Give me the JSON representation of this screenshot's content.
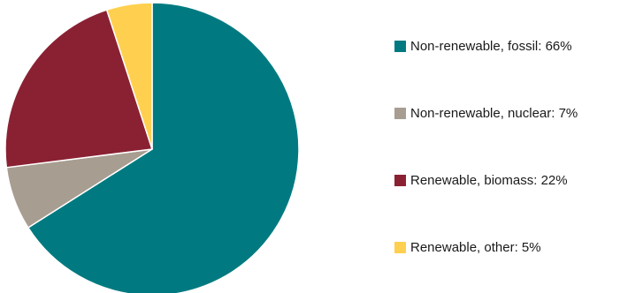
{
  "chart_data": {
    "type": "pie",
    "title": "",
    "start_angle_deg": 0,
    "direction": "clockwise",
    "slices": [
      {
        "name": "Non-renewable, fossil",
        "value": 66,
        "color": "#007A80",
        "legend_label": "Non-renewable, fossil: 66%"
      },
      {
        "name": "Non-renewable, nuclear",
        "value": 7,
        "color": "#A89D91",
        "legend_label": "Non-renewable, nuclear: 7%"
      },
      {
        "name": "Renewable, biomass",
        "value": 22,
        "color": "#8A2133",
        "legend_label": "Renewable, biomass: 22%"
      },
      {
        "name": "Renewable, other",
        "value": 5,
        "color": "#FFD04F",
        "legend_label": "Renewable, other: 5%"
      }
    ],
    "legend_position": "right",
    "slice_border_color": "#FFFFFF"
  }
}
